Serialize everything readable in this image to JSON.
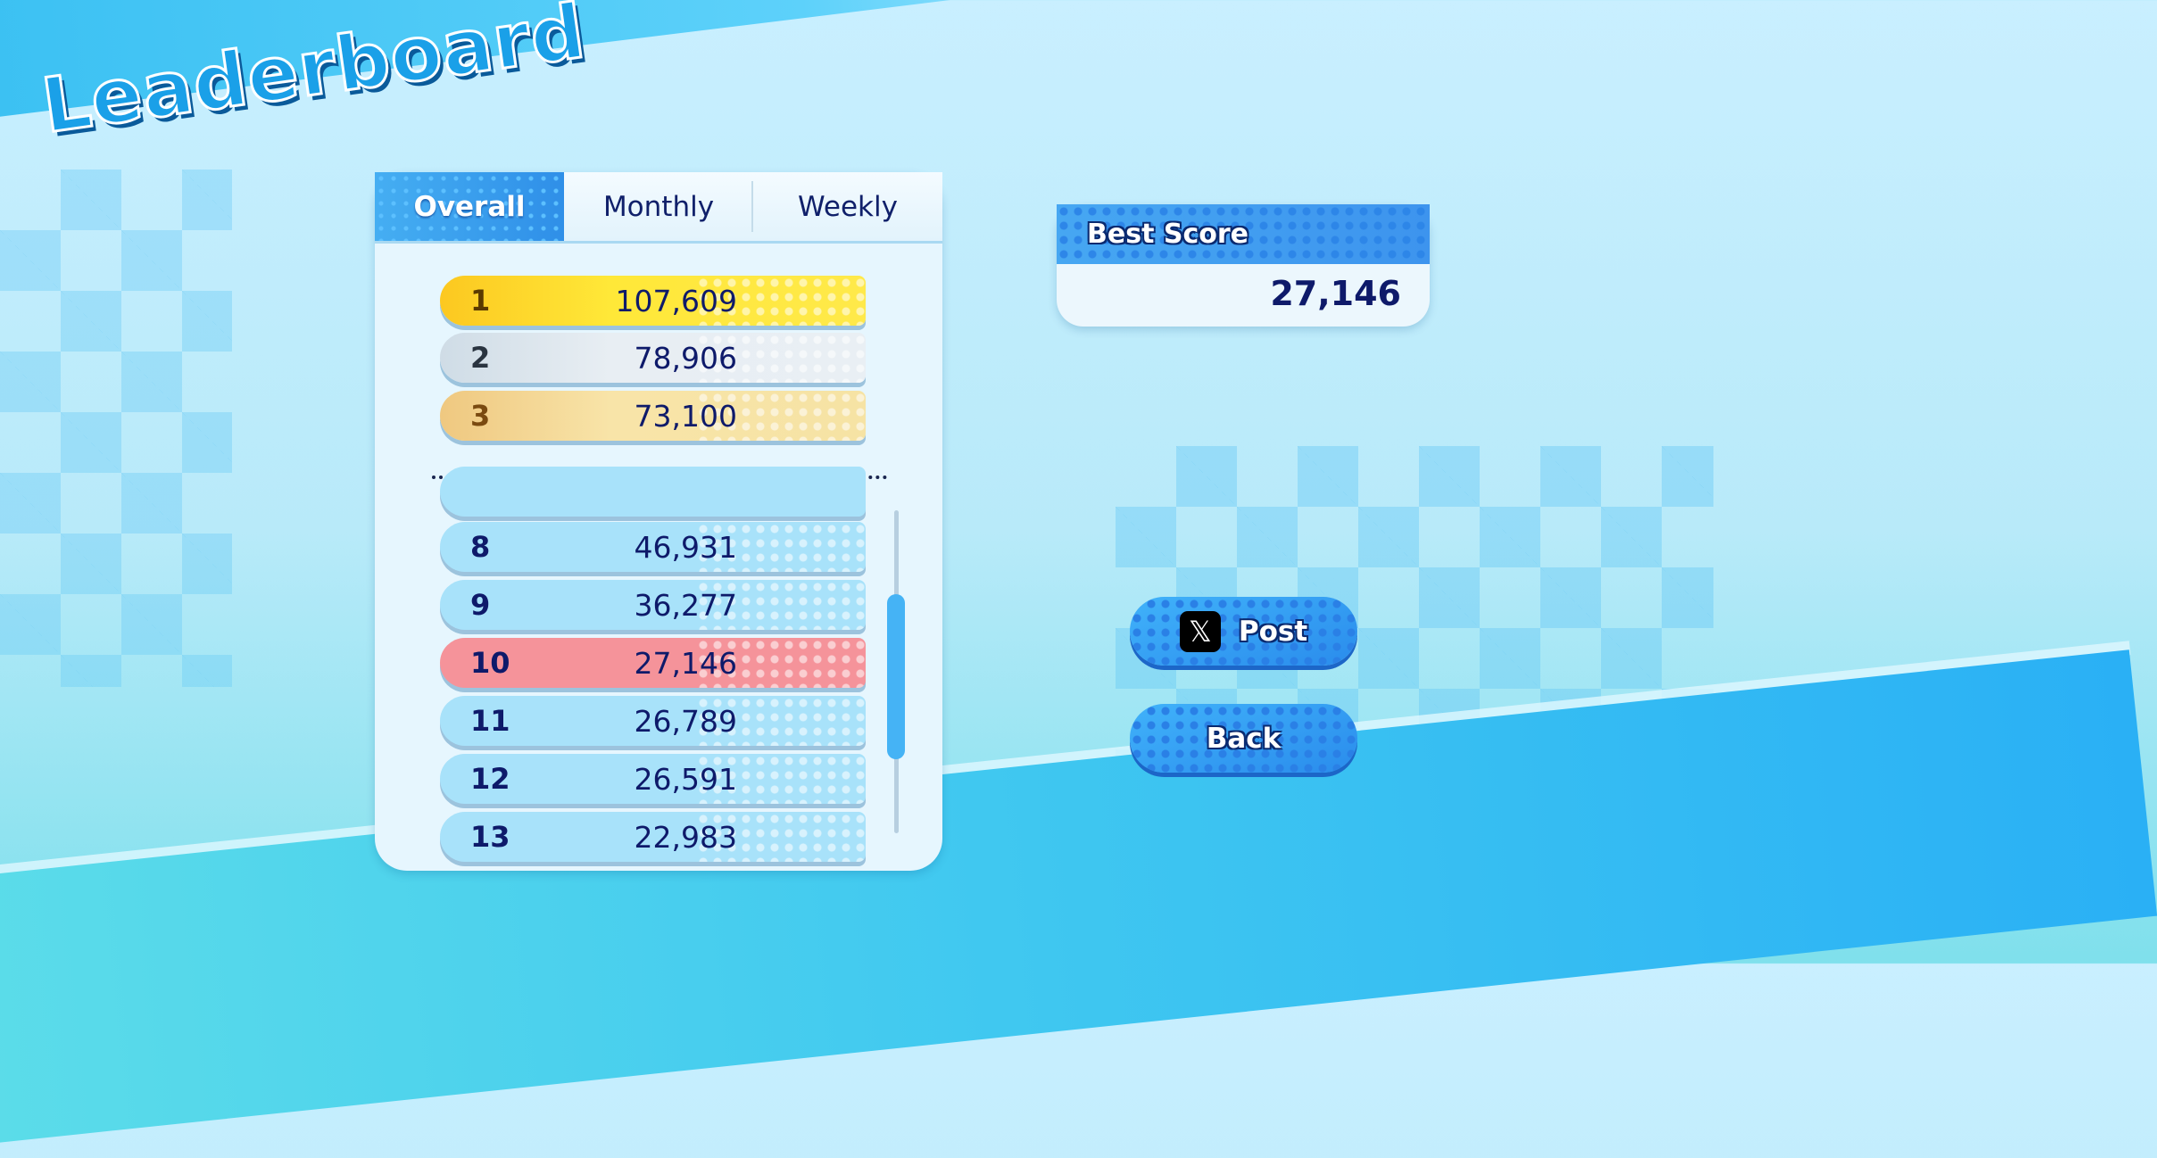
{
  "title": "Leaderboard",
  "tabs": [
    {
      "label": "Overall",
      "active": true
    },
    {
      "label": "Monthly"
    },
    {
      "label": "Weekly"
    }
  ],
  "top_ranks": [
    {
      "rank": "1",
      "score": "107,609"
    },
    {
      "rank": "2",
      "score": "78,906"
    },
    {
      "rank": "3",
      "score": "73,100"
    }
  ],
  "list": [
    {
      "rank": "8",
      "score": "46,931"
    },
    {
      "rank": "9",
      "score": "36,277"
    },
    {
      "rank": "10",
      "score": "27,146",
      "highlight": true
    },
    {
      "rank": "11",
      "score": "26,789"
    },
    {
      "rank": "12",
      "score": "26,591"
    },
    {
      "rank": "13",
      "score": "22,983"
    }
  ],
  "best_score": {
    "label": "Best Score",
    "value": "27,146"
  },
  "buttons": {
    "post": "Post",
    "back": "Back",
    "post_icon": "x-logo-icon"
  },
  "colors": {
    "accent": "#3d94ee",
    "highlight": "#f5939a",
    "gold": "#ffe838",
    "text": "#0e1a6a"
  }
}
